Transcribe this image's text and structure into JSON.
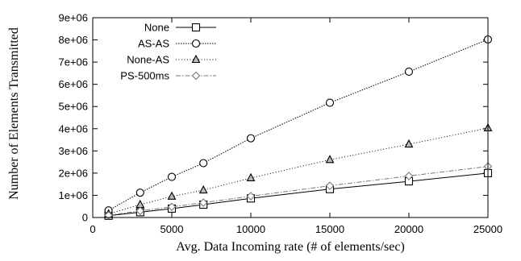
{
  "chart_data": {
    "type": "line",
    "title": "",
    "xlabel": "Avg. Data Incoming rate (# of elements/sec)",
    "ylabel": "Number of Elements Transmitted",
    "xlim": [
      0,
      25000
    ],
    "ylim": [
      0,
      9000000
    ],
    "x_ticks": [
      0,
      5000,
      10000,
      15000,
      20000,
      25000
    ],
    "x_tick_labels": [
      "0",
      "5000",
      "10000",
      "15000",
      "20000",
      "25000"
    ],
    "y_ticks": [
      0,
      1000000,
      2000000,
      3000000,
      4000000,
      5000000,
      6000000,
      7000000,
      8000000,
      9000000
    ],
    "y_tick_labels": [
      "0",
      "1e+06",
      "2e+06",
      "3e+06",
      "4e+06",
      "5e+06",
      "6e+06",
      "7e+06",
      "8e+06",
      "9e+06"
    ],
    "grid": false,
    "legend_position": "top-left",
    "x": [
      1000,
      3000,
      5000,
      7000,
      10000,
      15000,
      20000,
      25000
    ],
    "series": [
      {
        "name": "None",
        "marker": "square",
        "dash": "solid",
        "color": "#000000",
        "values": [
          80000,
          240000,
          400000,
          580000,
          860000,
          1280000,
          1630000,
          2000000
        ]
      },
      {
        "name": "AS-AS",
        "marker": "circle",
        "dash": "dotted-fine",
        "color": "#000000",
        "values": [
          320000,
          1120000,
          1830000,
          2450000,
          3570000,
          5170000,
          6570000,
          8020000
        ]
      },
      {
        "name": "None-AS",
        "marker": "triangle",
        "dash": "dotted",
        "color": "#000000",
        "values": [
          160000,
          580000,
          950000,
          1230000,
          1780000,
          2600000,
          3300000,
          4030000
        ]
      },
      {
        "name": "PS-500ms",
        "marker": "diamond",
        "dash": "dash-dot",
        "color": "#777777",
        "values": [
          100000,
          300000,
          480000,
          670000,
          960000,
          1430000,
          1870000,
          2300000
        ]
      }
    ]
  }
}
